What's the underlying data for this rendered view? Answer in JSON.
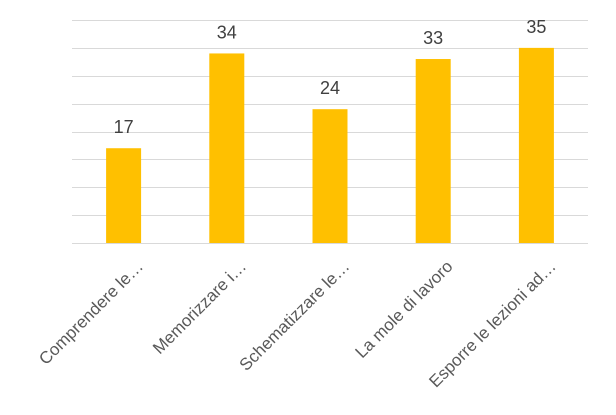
{
  "chart_data": {
    "type": "bar",
    "title": "",
    "xlabel": "",
    "ylabel": "",
    "categories": [
      "Comprendere le…",
      "Memorizzare i…",
      "Schematizzare le…",
      "La mole di lavoro",
      "Esporre le lezioni ad…"
    ],
    "values": [
      17,
      34,
      24,
      33,
      35
    ],
    "data_labels": [
      "17",
      "34",
      "24",
      "33",
      "35"
    ],
    "ylim": [
      0,
      40
    ],
    "y_gridline_step": 5,
    "grid": true,
    "legend": "none",
    "bar_color": "#ffc000"
  }
}
